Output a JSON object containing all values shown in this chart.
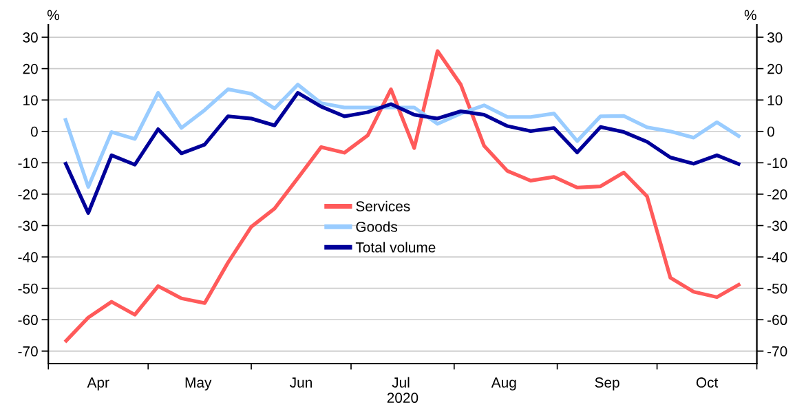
{
  "chart_data": {
    "type": "line",
    "x": [
      "2020-04-06",
      "2020-04-13",
      "2020-04-20",
      "2020-04-27",
      "2020-05-04",
      "2020-05-11",
      "2020-05-18",
      "2020-05-25",
      "2020-06-01",
      "2020-06-08",
      "2020-06-15",
      "2020-06-22",
      "2020-06-29",
      "2020-07-06",
      "2020-07-13",
      "2020-07-20",
      "2020-07-27",
      "2020-08-03",
      "2020-08-10",
      "2020-08-17",
      "2020-08-24",
      "2020-08-31",
      "2020-09-07",
      "2020-09-14",
      "2020-09-21",
      "2020-09-28",
      "2020-10-05",
      "2020-10-12",
      "2020-10-19",
      "2020-10-26"
    ],
    "series": [
      {
        "name": "Services",
        "color": "#ff5a5a",
        "values": [
          -67.1,
          -59.3,
          -54.3,
          -58.4,
          -49.3,
          -53.2,
          -54.7,
          -41.8,
          -30.4,
          -24.6,
          -14.9,
          -5.0,
          -6.8,
          -1.3,
          13.4,
          -5.3,
          25.6,
          14.9,
          -4.6,
          -12.6,
          -15.7,
          -14.5,
          -17.9,
          -17.5,
          -13.1,
          -20.7,
          -46.6,
          -51.1,
          -52.8,
          -48.6
        ]
      },
      {
        "name": "Goods",
        "color": "#99ccff",
        "values": [
          4.2,
          -17.7,
          -0.2,
          -2.4,
          12.3,
          1.1,
          6.8,
          13.4,
          12.0,
          7.3,
          14.9,
          9.0,
          7.6,
          7.6,
          7.6,
          7.6,
          2.4,
          5.7,
          8.3,
          4.6,
          4.6,
          5.7,
          -3.1,
          4.8,
          4.9,
          1.3,
          0.0,
          -2.0,
          2.9,
          -1.8
        ]
      },
      {
        "name": "Total volume",
        "color": "#000099",
        "values": [
          -9.8,
          -26.0,
          -7.6,
          -10.6,
          0.7,
          -7.0,
          -4.2,
          4.8,
          4.1,
          1.9,
          12.3,
          7.9,
          4.8,
          6.1,
          8.7,
          5.3,
          4.1,
          6.4,
          5.3,
          1.7,
          0.1,
          1.1,
          -6.7,
          1.4,
          -0.2,
          -3.3,
          -8.3,
          -10.3,
          -7.6,
          -10.6
        ]
      }
    ],
    "xlabel": "2020",
    "ylabel": "%",
    "y2label": "%",
    "xlim": [
      "2020-04-01",
      "2020-10-31"
    ],
    "xticks": [
      {
        "value": "2020-04-01",
        "label": null
      },
      {
        "value": "2020-04-16",
        "label": "Apr"
      },
      {
        "value": "2020-05-01",
        "label": null
      },
      {
        "value": "2020-05-16",
        "label": "May"
      },
      {
        "value": "2020-06-01",
        "label": null
      },
      {
        "value": "2020-06-16",
        "label": "Jun"
      },
      {
        "value": "2020-07-01",
        "label": null
      },
      {
        "value": "2020-07-16",
        "label": "Jul"
      },
      {
        "value": "2020-08-01",
        "label": null
      },
      {
        "value": "2020-08-16",
        "label": "Aug"
      },
      {
        "value": "2020-09-01",
        "label": null
      },
      {
        "value": "2020-09-16",
        "label": "Sep"
      },
      {
        "value": "2020-10-01",
        "label": null
      },
      {
        "value": "2020-10-16",
        "label": "Oct"
      },
      {
        "value": "2020-10-31",
        "label": null
      }
    ],
    "ylim": [
      -74,
      34
    ],
    "yticks": [
      -70,
      -60,
      -50,
      -40,
      -30,
      -20,
      -10,
      0,
      10,
      20,
      30
    ],
    "y2lim": [
      -74,
      34
    ],
    "y2ticks": [
      -70,
      -60,
      -50,
      -40,
      -30,
      -20,
      -10,
      0,
      10,
      20,
      30
    ],
    "grid": "y",
    "legend": "center",
    "marker": "none",
    "line_style": "solid"
  }
}
